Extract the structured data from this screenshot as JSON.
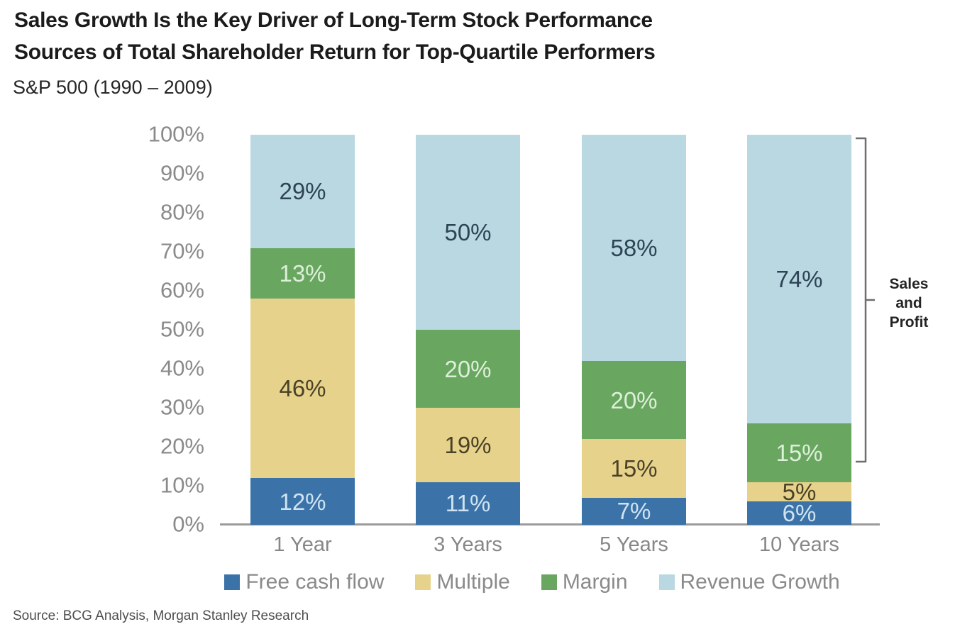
{
  "chart_data": {
    "type": "bar",
    "stacked": true,
    "title_line1": "Sales Growth Is the Key Driver of Long-Term Stock Performance",
    "title_line2": "Sources of Total Shareholder Return for Top-Quartile Performers",
    "subtitle": "S&P 500 (1990 – 2009)",
    "source": "Source: BCG Analysis, Morgan Stanley Research",
    "categories": [
      "1 Year",
      "3 Years",
      "5 Years",
      "10 Years"
    ],
    "series": [
      {
        "name": "Free cash flow",
        "color": "#3b73a8",
        "label_color": "#cfe3f2",
        "values": [
          12,
          11,
          7,
          6
        ]
      },
      {
        "name": "Multiple",
        "color": "#e7d28c",
        "label_color": "#4a4226",
        "values": [
          46,
          19,
          15,
          5
        ]
      },
      {
        "name": "Margin",
        "color": "#69a761",
        "label_color": "#ddefd8",
        "values": [
          13,
          20,
          20,
          15
        ]
      },
      {
        "name": "Revenue Growth",
        "color": "#b9d8e2",
        "label_color": "#2d4454",
        "values": [
          29,
          50,
          58,
          74
        ]
      }
    ],
    "value_suffix": "%",
    "ylim": [
      0,
      100
    ],
    "yticks": [
      "0%",
      "10%",
      "20%",
      "30%",
      "40%",
      "50%",
      "60%",
      "70%",
      "80%",
      "90%",
      "100%"
    ],
    "grid": false,
    "legend_position": "bottom",
    "bracket_annotation": {
      "lines": [
        "Sales",
        "and",
        "Profit"
      ],
      "applies_to_category": "10 Years",
      "covers_series": [
        "Margin",
        "Revenue Growth"
      ]
    }
  }
}
